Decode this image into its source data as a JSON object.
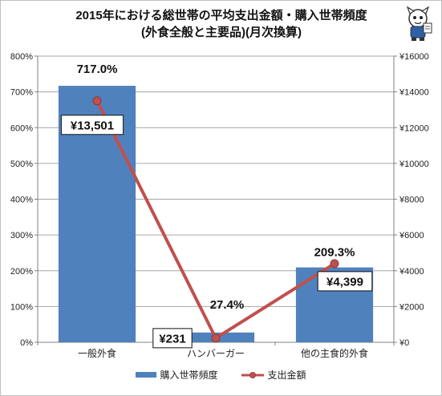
{
  "chart_data": {
    "type": "bar",
    "title_lines": [
      "2015年における総世帯の平均支出金額・購入世帯頻度",
      "(外食全般と主要品)(月次換算)"
    ],
    "categories": [
      "一般外食",
      "ハンバーガー",
      "他の主食的外食"
    ],
    "series": [
      {
        "name": "購入世帯頻度",
        "kind": "bar",
        "axis": "left",
        "color": "#4f81bd",
        "values": [
          717.0,
          27.4,
          209.3
        ],
        "labels": [
          "717.0%",
          "27.4%",
          "209.3%"
        ]
      },
      {
        "name": "支出金額",
        "kind": "line",
        "axis": "right",
        "color": "#c0504d",
        "values": [
          13501,
          231,
          4399
        ],
        "labels": [
          "¥13,501",
          "¥231",
          "¥4,399"
        ]
      }
    ],
    "y_left": {
      "range": [
        0,
        800
      ],
      "ticks": [
        0,
        100,
        200,
        300,
        400,
        500,
        600,
        700,
        800
      ],
      "tick_labels": [
        "0%",
        "100%",
        "200%",
        "300%",
        "400%",
        "500%",
        "600%",
        "700%",
        "800%"
      ]
    },
    "y_right": {
      "range": [
        0,
        16000
      ],
      "ticks": [
        0,
        2000,
        4000,
        6000,
        8000,
        10000,
        12000,
        14000,
        16000
      ],
      "tick_labels": [
        "¥0",
        "¥2000",
        "¥4000",
        "¥6000",
        "¥8000",
        "¥10000",
        "¥12000",
        "¥14000",
        "¥16000"
      ]
    },
    "grid": true,
    "legend": "bottom"
  },
  "legend": {
    "bar_label": "購入世帯頻度",
    "line_label": "支出金額"
  },
  "icons": {
    "logo": "mascot-logo-icon"
  }
}
